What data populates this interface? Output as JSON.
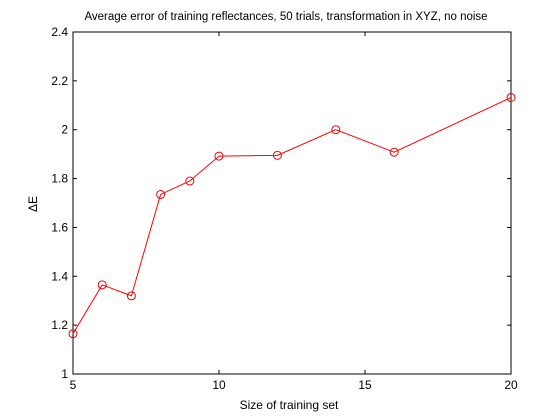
{
  "chart_data": {
    "type": "line",
    "title": "Average error of training reflectances, 50 trials, transformation in XYZ, no noise",
    "xlabel": "Size of training set",
    "ylabel": "ΔE",
    "xlim": [
      5,
      20
    ],
    "ylim": [
      1,
      2.4
    ],
    "xticks": [
      5,
      10,
      15,
      20
    ],
    "yticks": [
      1,
      1.2,
      1.4,
      1.6,
      1.8,
      2,
      2.2,
      2.4
    ],
    "xtick_labels": [
      "5",
      "10",
      "15",
      "20"
    ],
    "ytick_labels": [
      "1",
      "1.2",
      "1.4",
      "1.6",
      "1.8",
      "2",
      "2.2",
      "2.4"
    ],
    "grid": false,
    "series": [
      {
        "color": "#ff0000",
        "marker": "circle",
        "x": [
          5,
          6,
          7,
          8,
          9,
          10,
          12,
          14,
          16,
          20
        ],
        "y": [
          1.165,
          1.365,
          1.32,
          1.735,
          1.79,
          1.892,
          1.895,
          2.0,
          1.908,
          2.132
        ]
      }
    ]
  }
}
